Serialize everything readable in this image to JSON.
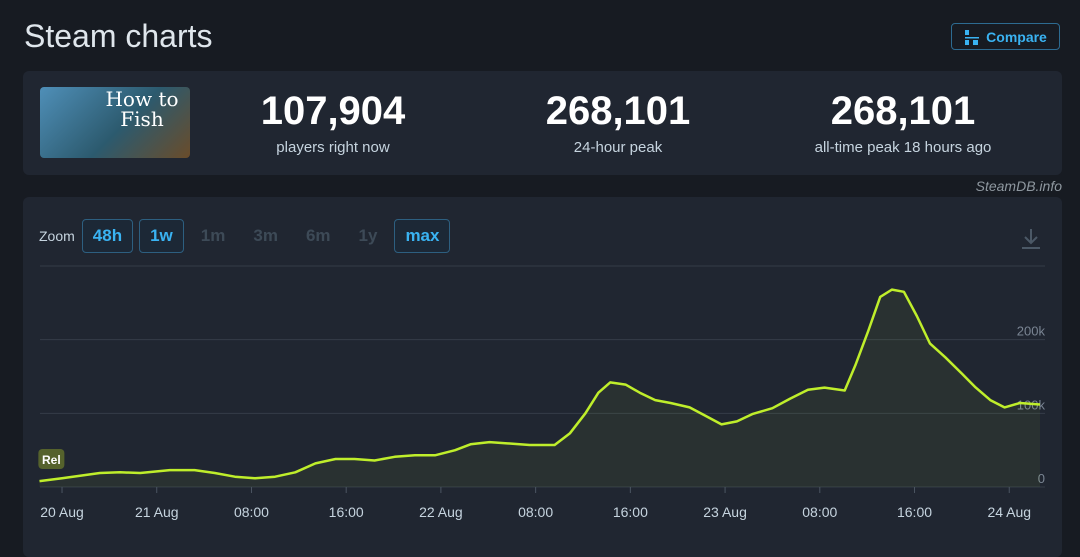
{
  "header": {
    "title": "Steam charts",
    "compare": "Compare"
  },
  "game": {
    "name": "How to Fish"
  },
  "stats": [
    {
      "value": "107,904",
      "label": "players right now"
    },
    {
      "value": "268,101",
      "label": "24-hour peak"
    },
    {
      "value": "268,101",
      "label": "all-time peak 18 hours ago"
    }
  ],
  "source": "SteamDB.info",
  "zoom": {
    "label": "Zoom",
    "options": [
      {
        "text": "48h",
        "active": true
      },
      {
        "text": "1w",
        "active": true
      },
      {
        "text": "1m",
        "active": false
      },
      {
        "text": "3m",
        "active": false
      },
      {
        "text": "6m",
        "active": false
      },
      {
        "text": "1y",
        "active": false
      },
      {
        "text": "max",
        "active": true
      }
    ]
  },
  "chart_data": {
    "type": "line",
    "series": [
      {
        "name": "Players",
        "color": "#bfee2b",
        "x": [
          -9.9,
          -8,
          -4.8,
          -3.1,
          -1.4,
          1.1,
          3.2,
          4.9,
          6.6,
          8.3,
          10,
          11.7,
          13.4,
          15.1,
          16.7,
          18.4,
          20.1,
          21.8,
          23.5,
          25.2,
          26.5,
          28.1,
          29.8,
          31.5,
          33.6,
          34.9,
          36.2,
          37.3,
          38.3,
          39.6,
          40.8,
          42.1,
          43.4,
          45,
          46.3,
          47.7,
          49,
          50.3,
          52,
          53.5,
          55,
          56.4,
          58.1,
          59,
          60.1,
          61.1,
          62.1,
          63.1,
          64.2,
          65.3,
          66.6,
          68,
          69.1,
          70.4,
          71.6,
          72.9,
          74.6
        ],
        "values": [
          8000,
          12000,
          19000,
          20000,
          19000,
          23000,
          23000,
          19000,
          14000,
          12000,
          14000,
          20000,
          32000,
          38000,
          38000,
          36000,
          41000,
          43000,
          43000,
          50000,
          58000,
          61000,
          59000,
          57000,
          57000,
          73000,
          100000,
          128000,
          142000,
          139000,
          128000,
          118000,
          114000,
          108000,
          97000,
          85000,
          89000,
          99000,
          107000,
          120000,
          132000,
          135000,
          131000,
          165000,
          212000,
          258000,
          268000,
          265000,
          232000,
          195000,
          176000,
          154000,
          136000,
          118000,
          108000,
          114000,
          112000
        ]
      }
    ],
    "xlim": [
      -9.86,
      75.02
    ],
    "xticks": [
      {
        "value": -8,
        "label": "20 Aug"
      },
      {
        "value": 0,
        "label": "21 Aug"
      },
      {
        "value": 8,
        "label": "08:00"
      },
      {
        "value": 16,
        "label": "16:00"
      },
      {
        "value": 24,
        "label": "22 Aug"
      },
      {
        "value": 32,
        "label": "08:00"
      },
      {
        "value": 40,
        "label": "16:00"
      },
      {
        "value": 48,
        "label": "23 Aug"
      },
      {
        "value": 56,
        "label": "08:00"
      },
      {
        "value": 64,
        "label": "16:00"
      },
      {
        "value": 72,
        "label": "24 Aug"
      }
    ],
    "ylim": [
      0,
      300000
    ],
    "yticks": [
      0,
      {
        "value": 100000,
        "label": "100k"
      },
      {
        "value": 200000,
        "label": "200k"
      }
    ],
    "grid": true,
    "annotations": [
      {
        "text": "Rel",
        "x": -8.9
      }
    ]
  }
}
